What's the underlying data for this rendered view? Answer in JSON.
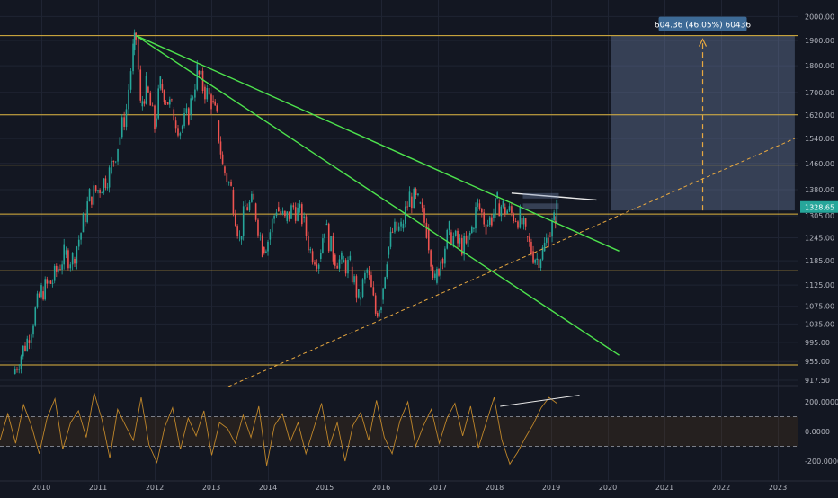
{
  "chart_data": {
    "type": "candlestick",
    "instrument": "",
    "timeframe": "weekly",
    "x_ticks": [
      "2010",
      "2011",
      "2012",
      "2013",
      "2014",
      "2015",
      "2016",
      "2017",
      "2018",
      "2019",
      "2020",
      "2021",
      "2022",
      "2023"
    ],
    "price_axis": {
      "scale": "log",
      "ticks": [
        "2000.00",
        "1900.00",
        "1800.00",
        "1700.00",
        "1620.00",
        "1540.00",
        "1460.00",
        "1380.00",
        "1305.00",
        "1245.00",
        "1185.00",
        "1125.00",
        "1075.00",
        "1035.00",
        "995.00",
        "955.00",
        "917.50"
      ],
      "last_price": "1328.65"
    },
    "price_series": [
      [
        "2009.5",
        930
      ],
      [
        "2009.75",
        1000
      ],
      [
        "2010.0",
        1110
      ],
      [
        "2010.2",
        1135
      ],
      [
        "2010.4",
        1200
      ],
      [
        "2010.55",
        1190
      ],
      [
        "2010.7",
        1260
      ],
      [
        "2010.85",
        1360
      ],
      [
        "2011.0",
        1380
      ],
      [
        "2011.2",
        1430
      ],
      [
        "2011.35",
        1520
      ],
      [
        "2011.5",
        1640
      ],
      [
        "2011.62",
        1860
      ],
      [
        "2011.67",
        1910
      ],
      [
        "2011.75",
        1650
      ],
      [
        "2011.85",
        1720
      ],
      [
        "2012.0",
        1580
      ],
      [
        "2012.1",
        1730
      ],
      [
        "2012.3",
        1640
      ],
      [
        "2012.45",
        1570
      ],
      [
        "2012.6",
        1620
      ],
      [
        "2012.75",
        1780
      ],
      [
        "2012.85",
        1720
      ],
      [
        "2013.0",
        1670
      ],
      [
        "2013.1",
        1600
      ],
      [
        "2013.2",
        1450
      ],
      [
        "2013.35",
        1380
      ],
      [
        "2013.5",
        1240
      ],
      [
        "2013.6",
        1330
      ],
      [
        "2013.75",
        1340
      ],
      [
        "2013.9",
        1220
      ],
      [
        "2014.0",
        1240
      ],
      [
        "2014.15",
        1330
      ],
      [
        "2014.3",
        1290
      ],
      [
        "2014.45",
        1330
      ],
      [
        "2014.6",
        1300
      ],
      [
        "2014.75",
        1210
      ],
      [
        "2014.9",
        1190
      ],
      [
        "2015.0",
        1280
      ],
      [
        "2015.15",
        1200
      ],
      [
        "2015.3",
        1180
      ],
      [
        "2015.45",
        1170
      ],
      [
        "2015.6",
        1090
      ],
      [
        "2015.75",
        1160
      ],
      [
        "2015.9",
        1060
      ],
      [
        "2016.0",
        1090
      ],
      [
        "2016.1",
        1200
      ],
      [
        "2016.2",
        1260
      ],
      [
        "2016.35",
        1270
      ],
      [
        "2016.5",
        1360
      ],
      [
        "2016.65",
        1340
      ],
      [
        "2016.8",
        1270
      ],
      [
        "2016.95",
        1130
      ],
      [
        "2017.05",
        1190
      ],
      [
        "2017.2",
        1260
      ],
      [
        "2017.35",
        1230
      ],
      [
        "2017.5",
        1220
      ],
      [
        "2017.6",
        1270
      ],
      [
        "2017.7",
        1340
      ],
      [
        "2017.85",
        1280
      ],
      [
        "2017.95",
        1300
      ],
      [
        "2018.05",
        1340
      ],
      [
        "2018.15",
        1330
      ],
      [
        "2018.3",
        1310
      ],
      [
        "2018.45",
        1300
      ],
      [
        "2018.55",
        1250
      ],
      [
        "2018.65",
        1210
      ],
      [
        "2018.75",
        1190
      ],
      [
        "2018.85",
        1210
      ],
      [
        "2018.95",
        1250
      ],
      [
        "2019.05",
        1290
      ],
      [
        "2019.1",
        1328.65
      ]
    ],
    "horizontal_levels": [
      1920,
      1620,
      1455,
      1310,
      1160,
      948
    ],
    "trendlines": [
      {
        "color": "#4de24d",
        "from": [
          "2011.67",
          1920
        ],
        "to": [
          "2020.2",
          1210
        ]
      },
      {
        "color": "#4de24d",
        "from": [
          "2011.67",
          1920
        ],
        "to": [
          "2020.2",
          968
        ]
      },
      {
        "color": "#e9e9e9",
        "from": [
          "2018.3",
          1370
        ],
        "to": [
          "2019.8",
          1350
        ]
      }
    ],
    "dashed_line": {
      "color": "#e8a840",
      "from": [
        "2013.3",
        905
      ],
      "to": [
        "2023.3",
        1540
      ]
    },
    "projection_box": {
      "x_from": "2020.05",
      "x_to": "2023.3",
      "price_from": 1320,
      "price_to": 1920
    },
    "projection_label": "604.36 (46.05%) 60436",
    "oscillator": {
      "type": "cci",
      "ticks": [
        "200.0000",
        "0.0000",
        "-200.0000"
      ],
      "upper_band": 100,
      "lower_band": -100,
      "values": [
        -60,
        120,
        -80,
        180,
        40,
        -150,
        90,
        220,
        -120,
        60,
        140,
        -40,
        260,
        80,
        -180,
        150,
        40,
        -60,
        230,
        -90,
        -210,
        30,
        160,
        -120,
        90,
        -30,
        140,
        -160,
        60,
        20,
        -80,
        110,
        -40,
        170,
        -230,
        40,
        120,
        -70,
        60,
        -150,
        20,
        190,
        -100,
        60,
        -200,
        40,
        130,
        -60,
        210,
        -40,
        -150,
        70,
        200,
        -100,
        40,
        150,
        -80,
        90,
        190,
        -30,
        170,
        -110,
        60,
        230,
        -60,
        -220,
        -140,
        -40,
        50,
        160,
        230,
        190
      ]
    }
  }
}
